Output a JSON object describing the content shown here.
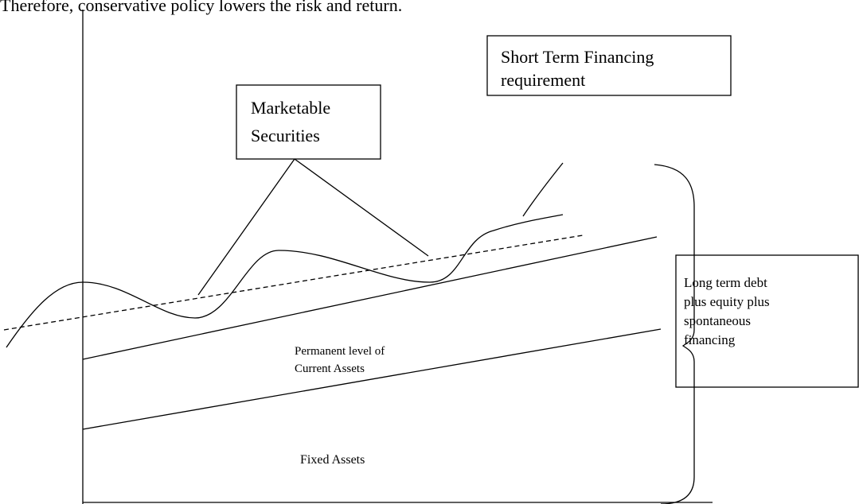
{
  "header": {
    "text": "Therefore, conservative policy lowers the risk and return."
  },
  "labels": {
    "marketable": [
      "Marketable",
      "Securities"
    ],
    "short_term": [
      "Short Term Financing",
      "requirement"
    ],
    "long_term": [
      "Long term debt",
      "plus equity plus",
      "spontaneous",
      "financing"
    ],
    "permanent": [
      "Permanent level of",
      "Current Assets"
    ],
    "fixed": "Fixed Assets"
  }
}
